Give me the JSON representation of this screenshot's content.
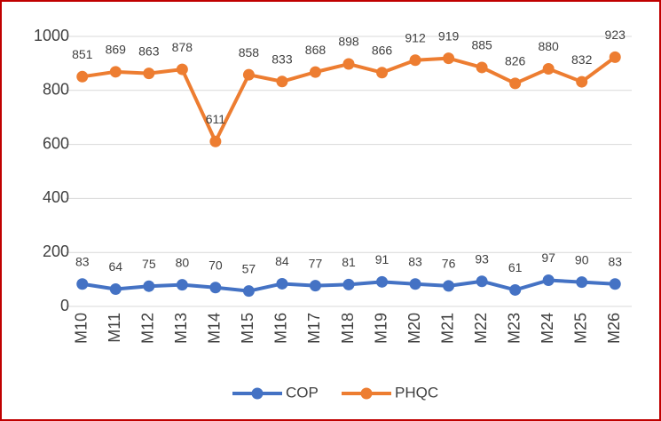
{
  "chart_data": {
    "type": "line",
    "categories": [
      "M10",
      "M11",
      "M12",
      "M13",
      "M14",
      "M15",
      "M16",
      "M17",
      "M18",
      "M19",
      "M20",
      "M21",
      "M22",
      "M23",
      "M24",
      "M25",
      "M26"
    ],
    "series": [
      {
        "name": "COP",
        "color": "#4472c4",
        "values": [
          83,
          64,
          75,
          80,
          70,
          57,
          84,
          77,
          81,
          91,
          83,
          76,
          93,
          61,
          97,
          90,
          83
        ]
      },
      {
        "name": "PHQC",
        "color": "#ed7d31",
        "values": [
          851,
          869,
          863,
          878,
          611,
          858,
          833,
          868,
          898,
          866,
          912,
          919,
          885,
          826,
          880,
          832,
          923
        ]
      }
    ],
    "ylim": [
      0,
      1000
    ],
    "yticks": [
      0,
      200,
      400,
      600,
      800,
      1000
    ],
    "grid": true,
    "legend": "bottom"
  }
}
